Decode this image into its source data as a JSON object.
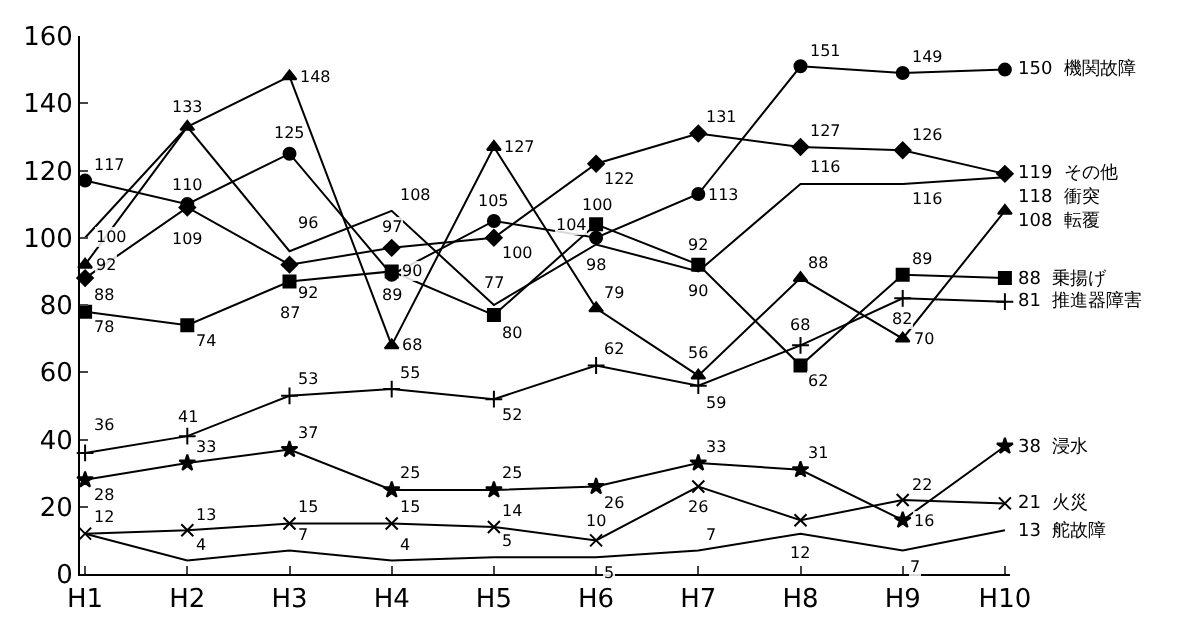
{
  "chart_data": {
    "type": "line",
    "categories": [
      "H1",
      "H2",
      "H3",
      "H4",
      "H5",
      "H6",
      "H7",
      "H8",
      "H9",
      "H10"
    ],
    "ylim": [
      0,
      160
    ],
    "yticks": [
      0,
      20,
      40,
      60,
      80,
      100,
      120,
      140,
      160
    ],
    "legend": false,
    "grid": false,
    "series": [
      {
        "name": "機関故障",
        "color": "#000000",
        "marker": "circle",
        "values": [
          117,
          110,
          125,
          89,
          105,
          100,
          113,
          151,
          149,
          150
        ],
        "value_labels": [
          "117",
          "110",
          "125",
          "89",
          "105",
          "100",
          "113",
          "151",
          "149",
          "150"
        ]
      },
      {
        "name": "その他",
        "color": "#000000",
        "marker": "diamond",
        "values": [
          88,
          109,
          92,
          97,
          100,
          122,
          131,
          127,
          126,
          119
        ],
        "value_labels": [
          "88",
          "109",
          "92",
          "97",
          "100",
          "122",
          "131",
          "127",
          "126",
          "119"
        ]
      },
      {
        "name": "衝突",
        "color": "#000000",
        "marker": "none",
        "values": [
          100,
          133,
          96,
          108,
          80,
          98,
          90,
          116,
          116,
          118
        ],
        "value_labels": [
          "100",
          null,
          "96",
          "108",
          "80",
          "98",
          "90",
          "116",
          "116",
          "118"
        ]
      },
      {
        "name": "転覆",
        "color": "#000000",
        "marker": "triangle",
        "values": [
          92,
          133,
          148,
          68,
          127,
          79,
          59,
          88,
          70,
          108
        ],
        "value_labels": [
          "92",
          "133",
          "148",
          "68",
          "127",
          "79",
          "59",
          "88",
          "70",
          "108"
        ]
      },
      {
        "name": "乗揚げ",
        "color": "#000000",
        "marker": "square",
        "values": [
          78,
          74,
          87,
          90,
          77,
          104,
          92,
          62,
          89,
          88
        ],
        "value_labels": [
          "78",
          "74",
          "87",
          "90",
          "77",
          "104",
          "92",
          "62",
          "89",
          "88"
        ]
      },
      {
        "name": "推進器障害",
        "color": "#000000",
        "marker": "cross",
        "values": [
          36,
          41,
          53,
          55,
          52,
          62,
          56,
          68,
          82,
          81
        ],
        "value_labels": [
          "36",
          "41",
          "53",
          "55",
          "52",
          "62",
          "56",
          "68",
          "82",
          "81"
        ]
      },
      {
        "name": "浸水",
        "color": "#000000",
        "marker": "star",
        "values": [
          28,
          33,
          37,
          25,
          25,
          26,
          33,
          31,
          16,
          38
        ],
        "value_labels": [
          "28",
          "33",
          "37",
          "25",
          "25",
          "26",
          "33",
          "31",
          "16",
          "38"
        ]
      },
      {
        "name": "火災",
        "color": "#000000",
        "marker": "x",
        "values": [
          12,
          13,
          15,
          15,
          14,
          10,
          26,
          16,
          22,
          21
        ],
        "value_labels": [
          "12",
          "13",
          "15",
          "15",
          "14",
          "10",
          "26",
          null,
          "22",
          "21"
        ]
      },
      {
        "name": "舵故障",
        "color": "#000000",
        "marker": "none",
        "values": [
          12,
          4,
          7,
          4,
          5,
          5,
          7,
          12,
          7,
          13
        ],
        "value_labels": [
          null,
          "4",
          "7",
          "4",
          "5",
          "5",
          "7",
          "12",
          "7",
          "13"
        ]
      }
    ]
  }
}
